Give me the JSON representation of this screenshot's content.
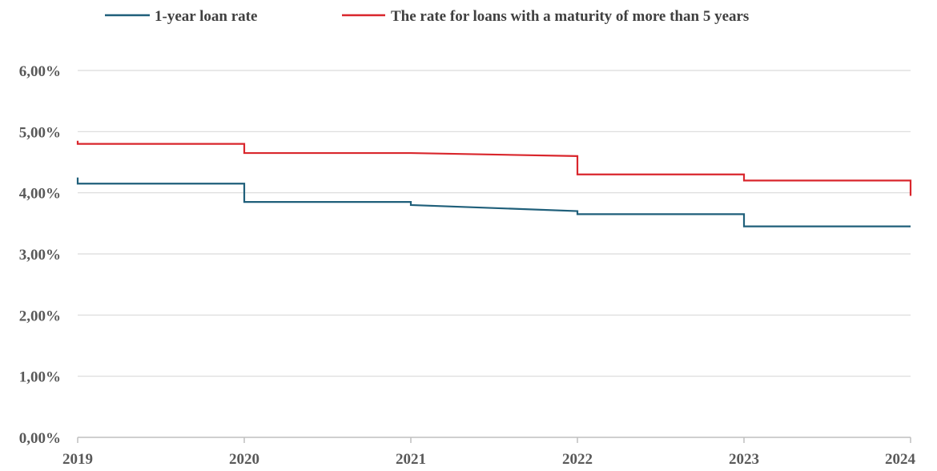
{
  "chart_data": {
    "type": "line",
    "title": "",
    "xlabel": "",
    "ylabel": "",
    "x_ticks": [
      "2019",
      "2020",
      "2021",
      "2022",
      "2023",
      "2024"
    ],
    "y_ticks": [
      "0,00%",
      "1,00%",
      "2,00%",
      "3,00%",
      "4,00%",
      "5,00%",
      "6,00%"
    ],
    "xlim": [
      2019,
      2024
    ],
    "ylim": [
      0,
      6
    ],
    "grid": true,
    "legend_position": "top",
    "series": [
      {
        "name": "1-year loan rate",
        "color": "#1F5F7A",
        "points": [
          [
            2019,
            4.25
          ],
          [
            2019,
            4.15
          ],
          [
            2020,
            4.15
          ],
          [
            2020,
            3.85
          ],
          [
            2021,
            3.85
          ],
          [
            2021,
            3.8
          ],
          [
            2022,
            3.7
          ],
          [
            2022,
            3.65
          ],
          [
            2023,
            3.65
          ],
          [
            2023,
            3.45
          ],
          [
            2024,
            3.45
          ]
        ]
      },
      {
        "name": "The rate for loans with a maturity of more than 5 years",
        "color": "#D9262C",
        "points": [
          [
            2019,
            4.85
          ],
          [
            2019,
            4.8
          ],
          [
            2020,
            4.8
          ],
          [
            2020,
            4.65
          ],
          [
            2021,
            4.65
          ],
          [
            2022,
            4.6
          ],
          [
            2022,
            4.3
          ],
          [
            2023,
            4.3
          ],
          [
            2023,
            4.2
          ],
          [
            2024,
            4.2
          ],
          [
            2024,
            3.95
          ]
        ]
      }
    ]
  }
}
